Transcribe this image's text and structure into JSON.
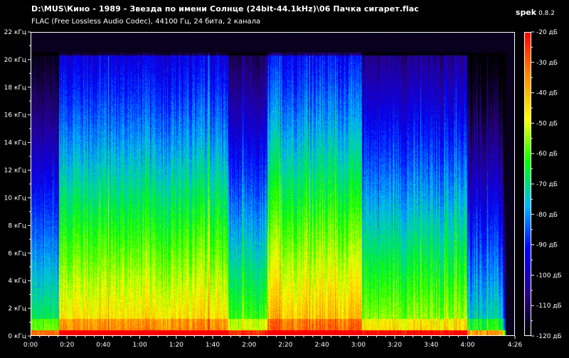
{
  "window": {
    "title": "D:\\MUS\\Кино - 1989 - Звезда по имени Солнце (24bit-44.1kHz)\\06 Пачка сигарет.flac",
    "subtitle": "FLAC (Free Lossless Audio Codec), 44100 Гц, 24 бита, 2 канала",
    "app_name": "spek",
    "app_version": "0.8.2"
  },
  "colors": {
    "background": "#000000",
    "text": "#ffffff",
    "colorbar_stops": [
      "#ff0000",
      "#ff8a00",
      "#ffff00",
      "#00ff00",
      "#00b8ff",
      "#0000ff",
      "#2a0090",
      "#000000"
    ]
  },
  "chart_data": {
    "type": "heatmap",
    "y_axis": {
      "unit": "кГц",
      "range": [
        0,
        22
      ],
      "ticks": [
        {
          "value": 0,
          "label": "0 кГц"
        },
        {
          "value": 2,
          "label": "2 кГц"
        },
        {
          "value": 4,
          "label": "4 кГц"
        },
        {
          "value": 6,
          "label": "6 кГц"
        },
        {
          "value": 8,
          "label": "8 кГц"
        },
        {
          "value": 10,
          "label": "10 кГц"
        },
        {
          "value": 12,
          "label": "12 кГц"
        },
        {
          "value": 14,
          "label": "14 кГц"
        },
        {
          "value": 16,
          "label": "16 кГц"
        },
        {
          "value": 18,
          "label": "18 кГц"
        },
        {
          "value": 20,
          "label": "20 кГц"
        },
        {
          "value": 22,
          "label": "22 кГц"
        }
      ]
    },
    "x_axis": {
      "unit": "s",
      "range": [
        0,
        266
      ],
      "ticks": [
        {
          "value": 0,
          "label": "0:00"
        },
        {
          "value": 20,
          "label": "0:20"
        },
        {
          "value": 40,
          "label": "0:40"
        },
        {
          "value": 60,
          "label": "1:00"
        },
        {
          "value": 80,
          "label": "1:20"
        },
        {
          "value": 100,
          "label": "1:40"
        },
        {
          "value": 120,
          "label": "2:00"
        },
        {
          "value": 140,
          "label": "2:20"
        },
        {
          "value": 160,
          "label": "2:40"
        },
        {
          "value": 180,
          "label": "3:00"
        },
        {
          "value": 200,
          "label": "3:20"
        },
        {
          "value": 220,
          "label": "3:40"
        },
        {
          "value": 240,
          "label": "4:00"
        },
        {
          "value": 266,
          "label": "4:26"
        }
      ]
    },
    "colorbar": {
      "unit": "дБ",
      "range": [
        -120,
        -20
      ],
      "ticks": [
        {
          "value": -20,
          "label": "-20 дБ"
        },
        {
          "value": -30,
          "label": "-30 дБ"
        },
        {
          "value": -40,
          "label": "-40 дБ"
        },
        {
          "value": -50,
          "label": "-50 дБ"
        },
        {
          "value": -60,
          "label": "-60 дБ"
        },
        {
          "value": -70,
          "label": "-70 дБ"
        },
        {
          "value": -80,
          "label": "-80 дБ"
        },
        {
          "value": -90,
          "label": "-90 дБ"
        },
        {
          "value": -100,
          "label": "-100 дБ"
        },
        {
          "value": -110,
          "label": "-110 дБ"
        },
        {
          "value": -120,
          "label": "-120 дБ"
        }
      ]
    },
    "content_upper_limit_khz": 20.6,
    "content_end_s": 261,
    "time_segments": [
      {
        "start": 0,
        "end": 15,
        "level": 0.55
      },
      {
        "start": 15,
        "end": 108,
        "level": 0.78
      },
      {
        "start": 108,
        "end": 130,
        "level": 0.62
      },
      {
        "start": 130,
        "end": 182,
        "level": 0.82
      },
      {
        "start": 182,
        "end": 240,
        "level": 0.68
      },
      {
        "start": 240,
        "end": 261,
        "level": 0.5
      }
    ]
  }
}
